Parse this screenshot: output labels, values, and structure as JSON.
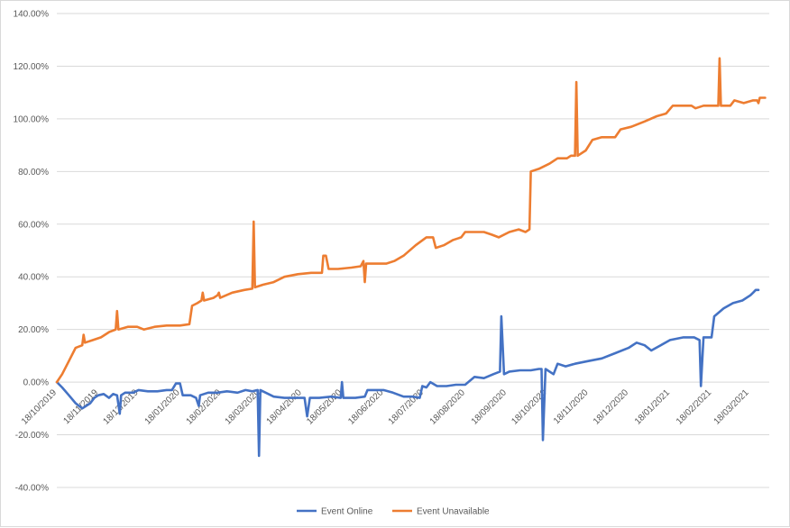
{
  "chart_data": {
    "type": "line",
    "title": "",
    "xlabel": "",
    "ylabel": "",
    "ylim": [
      -40,
      140
    ],
    "y_ticks": [
      "140.00%",
      "120.00%",
      "100.00%",
      "80.00%",
      "60.00%",
      "40.00%",
      "20.00%",
      "0.00%",
      "-20.00%",
      "-40.00%"
    ],
    "y_tick_values": [
      140,
      120,
      100,
      80,
      60,
      40,
      20,
      0,
      -20,
      -40
    ],
    "x_range": [
      "2019-10-18",
      "2021-03-25"
    ],
    "x_ticks": [
      "18/10/2019",
      "18/11/2019",
      "18/12/2019",
      "18/01/2020",
      "18/02/2020",
      "18/03/2020",
      "18/04/2020",
      "18/05/2020",
      "18/06/2020",
      "18/07/2020",
      "18/08/2020",
      "18/09/2020",
      "18/10/2020",
      "18/11/2020",
      "18/12/2020",
      "18/01/2021",
      "18/02/2021",
      "18/03/2021"
    ],
    "x_tick_dates": [
      "2019-10-18",
      "2019-11-18",
      "2019-12-18",
      "2020-01-18",
      "2020-02-18",
      "2020-03-18",
      "2020-04-18",
      "2020-05-18",
      "2020-06-18",
      "2020-07-18",
      "2020-08-18",
      "2020-09-18",
      "2020-10-18",
      "2020-11-18",
      "2020-12-18",
      "2021-01-18",
      "2021-02-18",
      "2021-03-18"
    ],
    "grid": true,
    "legend_position": "bottom",
    "series": [
      {
        "name": "Event Online",
        "color": "#4472c4",
        "points": [
          [
            "2019-10-18",
            0
          ],
          [
            "2019-10-22",
            -2
          ],
          [
            "2019-10-27",
            -5
          ],
          [
            "2019-11-01",
            -8
          ],
          [
            "2019-11-06",
            -10
          ],
          [
            "2019-11-09",
            -9
          ],
          [
            "2019-11-12",
            -8
          ],
          [
            "2019-11-15",
            -6
          ],
          [
            "2019-11-18",
            -5
          ],
          [
            "2019-11-22",
            -4.5
          ],
          [
            "2019-11-26",
            -6
          ],
          [
            "2019-11-29",
            -4.5
          ],
          [
            "2019-12-02",
            -5
          ],
          [
            "2019-12-04",
            -12
          ],
          [
            "2019-12-05",
            -5
          ],
          [
            "2019-12-08",
            -4
          ],
          [
            "2019-12-14",
            -4
          ],
          [
            "2019-12-18",
            -3
          ],
          [
            "2019-12-25",
            -3.5
          ],
          [
            "2020-01-01",
            -3.5
          ],
          [
            "2020-01-08",
            -3
          ],
          [
            "2020-01-12",
            -3
          ],
          [
            "2020-01-15",
            -0.5
          ],
          [
            "2020-01-18",
            -0.5
          ],
          [
            "2020-01-20",
            -5
          ],
          [
            "2020-01-26",
            -5
          ],
          [
            "2020-01-30",
            -6
          ],
          [
            "2020-02-01",
            -9
          ],
          [
            "2020-02-02",
            -5
          ],
          [
            "2020-02-08",
            -4
          ],
          [
            "2020-02-15",
            -4
          ],
          [
            "2020-02-22",
            -3.5
          ],
          [
            "2020-03-01",
            -4
          ],
          [
            "2020-03-07",
            -3
          ],
          [
            "2020-03-12",
            -3.5
          ],
          [
            "2020-03-16",
            -3
          ],
          [
            "2020-03-17",
            -28
          ],
          [
            "2020-03-18",
            -3
          ],
          [
            "2020-03-22",
            -4
          ],
          [
            "2020-03-28",
            -5.5
          ],
          [
            "2020-04-05",
            -6
          ],
          [
            "2020-04-15",
            -6
          ],
          [
            "2020-04-20",
            -6
          ],
          [
            "2020-04-22",
            -13
          ],
          [
            "2020-04-24",
            -6
          ],
          [
            "2020-05-01",
            -6
          ],
          [
            "2020-05-10",
            -5.5
          ],
          [
            "2020-05-17",
            -6
          ],
          [
            "2020-05-18",
            0
          ],
          [
            "2020-05-19",
            -6
          ],
          [
            "2020-05-28",
            -6
          ],
          [
            "2020-06-04",
            -5.5
          ],
          [
            "2020-06-06",
            -3
          ],
          [
            "2020-06-10",
            -3
          ],
          [
            "2020-06-18",
            -3
          ],
          [
            "2020-06-25",
            -4
          ],
          [
            "2020-07-03",
            -5.5
          ],
          [
            "2020-07-10",
            -5.5
          ],
          [
            "2020-07-15",
            -6
          ],
          [
            "2020-07-17",
            -1.5
          ],
          [
            "2020-07-20",
            -2
          ],
          [
            "2020-07-23",
            0
          ],
          [
            "2020-07-28",
            -1.5
          ],
          [
            "2020-08-04",
            -1.5
          ],
          [
            "2020-08-11",
            -1
          ],
          [
            "2020-08-18",
            -1
          ],
          [
            "2020-08-25",
            2
          ],
          [
            "2020-09-01",
            1.5
          ],
          [
            "2020-09-08",
            3
          ],
          [
            "2020-09-13",
            4
          ],
          [
            "2020-09-14",
            25
          ],
          [
            "2020-09-16",
            3
          ],
          [
            "2020-09-20",
            4
          ],
          [
            "2020-09-28",
            4.5
          ],
          [
            "2020-10-06",
            4.5
          ],
          [
            "2020-10-12",
            5
          ],
          [
            "2020-10-14",
            5
          ],
          [
            "2020-10-15",
            -22
          ],
          [
            "2020-10-17",
            5
          ],
          [
            "2020-10-23",
            3
          ],
          [
            "2020-10-26",
            7
          ],
          [
            "2020-11-01",
            6
          ],
          [
            "2020-11-08",
            7
          ],
          [
            "2020-11-18",
            8
          ],
          [
            "2020-11-28",
            9
          ],
          [
            "2020-12-08",
            11
          ],
          [
            "2020-12-18",
            13
          ],
          [
            "2020-12-24",
            15
          ],
          [
            "2020-12-30",
            14
          ],
          [
            "2021-01-04",
            12
          ],
          [
            "2021-01-11",
            14
          ],
          [
            "2021-01-18",
            16
          ],
          [
            "2021-01-28",
            17
          ],
          [
            "2021-02-05",
            17
          ],
          [
            "2021-02-09",
            16
          ],
          [
            "2021-02-10",
            -1.5
          ],
          [
            "2021-02-12",
            17
          ],
          [
            "2021-02-16",
            17
          ],
          [
            "2021-02-18",
            17
          ],
          [
            "2021-02-20",
            25
          ],
          [
            "2021-02-27",
            28
          ],
          [
            "2021-03-06",
            30
          ],
          [
            "2021-03-13",
            31
          ],
          [
            "2021-03-19",
            33
          ],
          [
            "2021-03-21",
            34
          ],
          [
            "2021-03-23",
            35
          ],
          [
            "2021-03-25",
            35
          ]
        ]
      },
      {
        "name": "Event Unavailable",
        "color": "#ed7d31",
        "points": [
          [
            "2019-10-18",
            0
          ],
          [
            "2019-10-22",
            3
          ],
          [
            "2019-10-27",
            8
          ],
          [
            "2019-11-01",
            13
          ],
          [
            "2019-11-06",
            14
          ],
          [
            "2019-11-07",
            18
          ],
          [
            "2019-11-08",
            15
          ],
          [
            "2019-11-14",
            16
          ],
          [
            "2019-11-20",
            17
          ],
          [
            "2019-11-26",
            19
          ],
          [
            "2019-12-01",
            20
          ],
          [
            "2019-12-02",
            27
          ],
          [
            "2019-12-03",
            20
          ],
          [
            "2019-12-10",
            21
          ],
          [
            "2019-12-17",
            21
          ],
          [
            "2019-12-22",
            20
          ],
          [
            "2019-12-30",
            21
          ],
          [
            "2020-01-08",
            21.5
          ],
          [
            "2020-01-18",
            21.5
          ],
          [
            "2020-01-25",
            22
          ],
          [
            "2020-01-27",
            29
          ],
          [
            "2020-01-31",
            30
          ],
          [
            "2020-02-03",
            31
          ],
          [
            "2020-02-04",
            34
          ],
          [
            "2020-02-05",
            31
          ],
          [
            "2020-02-12",
            32
          ],
          [
            "2020-02-15",
            33
          ],
          [
            "2020-02-16",
            34
          ],
          [
            "2020-02-17",
            32
          ],
          [
            "2020-02-26",
            34
          ],
          [
            "2020-03-06",
            35
          ],
          [
            "2020-03-12",
            35.5
          ],
          [
            "2020-03-13",
            61
          ],
          [
            "2020-03-14",
            36
          ],
          [
            "2020-03-20",
            37
          ],
          [
            "2020-03-28",
            38
          ],
          [
            "2020-04-05",
            40
          ],
          [
            "2020-04-15",
            41
          ],
          [
            "2020-04-25",
            41.5
          ],
          [
            "2020-05-03",
            41.5
          ],
          [
            "2020-05-04",
            48
          ],
          [
            "2020-05-06",
            48
          ],
          [
            "2020-05-08",
            43
          ],
          [
            "2020-05-15",
            43
          ],
          [
            "2020-05-25",
            43.5
          ],
          [
            "2020-06-01",
            44
          ],
          [
            "2020-06-03",
            46
          ],
          [
            "2020-06-04",
            38
          ],
          [
            "2020-06-05",
            45
          ],
          [
            "2020-06-12",
            45
          ],
          [
            "2020-06-20",
            45
          ],
          [
            "2020-06-26",
            46
          ],
          [
            "2020-07-03",
            48
          ],
          [
            "2020-07-12",
            52
          ],
          [
            "2020-07-20",
            55
          ],
          [
            "2020-07-25",
            55
          ],
          [
            "2020-07-27",
            51
          ],
          [
            "2020-08-02",
            52
          ],
          [
            "2020-08-09",
            54
          ],
          [
            "2020-08-15",
            55
          ],
          [
            "2020-08-18",
            57
          ],
          [
            "2020-08-25",
            57
          ],
          [
            "2020-09-01",
            57
          ],
          [
            "2020-09-07",
            56
          ],
          [
            "2020-09-12",
            55
          ],
          [
            "2020-09-20",
            57
          ],
          [
            "2020-09-27",
            58
          ],
          [
            "2020-10-02",
            57
          ],
          [
            "2020-10-05",
            58
          ],
          [
            "2020-10-06",
            80
          ],
          [
            "2020-10-12",
            81
          ],
          [
            "2020-10-20",
            83
          ],
          [
            "2020-10-26",
            85
          ],
          [
            "2020-11-02",
            85
          ],
          [
            "2020-11-05",
            86
          ],
          [
            "2020-11-08",
            86
          ],
          [
            "2020-11-09",
            114
          ],
          [
            "2020-11-10",
            86
          ],
          [
            "2020-11-16",
            88
          ],
          [
            "2020-11-21",
            92
          ],
          [
            "2020-11-28",
            93
          ],
          [
            "2020-12-08",
            93
          ],
          [
            "2020-12-12",
            96
          ],
          [
            "2020-12-20",
            97
          ],
          [
            "2020-12-30",
            99
          ],
          [
            "2021-01-08",
            101
          ],
          [
            "2021-01-15",
            102
          ],
          [
            "2021-01-20",
            105
          ],
          [
            "2021-01-27",
            105
          ],
          [
            "2021-02-03",
            105
          ],
          [
            "2021-02-06",
            104
          ],
          [
            "2021-02-12",
            105
          ],
          [
            "2021-02-21",
            105
          ],
          [
            "2021-02-23",
            105
          ],
          [
            "2021-02-24",
            123
          ],
          [
            "2021-02-25",
            105
          ],
          [
            "2021-03-04",
            105
          ],
          [
            "2021-03-07",
            107
          ],
          [
            "2021-03-14",
            106
          ],
          [
            "2021-03-21",
            107
          ],
          [
            "2021-03-24",
            107
          ],
          [
            "2021-03-25",
            106
          ],
          [
            "2021-03-26",
            108
          ],
          [
            "2021-03-30",
            108
          ]
        ]
      }
    ]
  }
}
